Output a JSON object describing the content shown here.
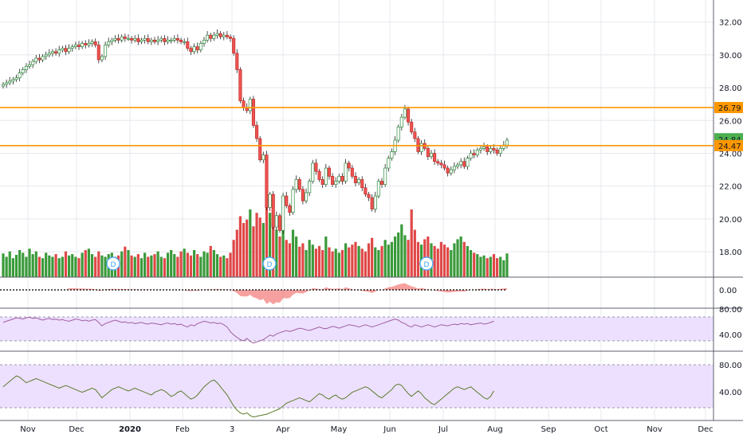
{
  "colors": {
    "up": "#26a69a",
    "up_candle": "#2e8b3e",
    "down": "#ef5350",
    "up_vol": "#3a9a3a",
    "down_vol": "#e04848",
    "level": "#ff9800",
    "current": "#4caf50",
    "osc_line": "#a060a0",
    "osc2_line": "#5a7a2a",
    "band_fill": "#ede0ff",
    "grid": "#e6e8ee",
    "axis": "#131722"
  },
  "price_axis_ticks": [
    "32.00",
    "30.00",
    "28.00",
    "26.00",
    "24.00",
    "22.00",
    "20.00",
    "18.00"
  ],
  "osc1_ticks": [
    "0.00"
  ],
  "osc2_ticks": [
    "80.00",
    "40.00"
  ],
  "osc3_ticks": [
    "80.00",
    "40.00"
  ],
  "time_axis_labels": [
    {
      "text": "Nov",
      "bold": false
    },
    {
      "text": "Dec",
      "bold": false
    },
    {
      "text": "2020",
      "bold": true
    },
    {
      "text": "Feb",
      "bold": false
    },
    {
      "text": "3",
      "bold": false
    },
    {
      "text": "Apr",
      "bold": false
    },
    {
      "text": "May",
      "bold": false
    },
    {
      "text": "Jun",
      "bold": false
    },
    {
      "text": "Jul",
      "bold": false
    },
    {
      "text": "Aug",
      "bold": false
    },
    {
      "text": "Sep",
      "bold": false
    },
    {
      "text": "Oct",
      "bold": false
    },
    {
      "text": "Nov",
      "bold": false
    },
    {
      "text": "Dec",
      "bold": false
    }
  ],
  "levels": [
    {
      "label": "26.79",
      "value": 26.79
    },
    {
      "label": "24.47",
      "value": 24.47
    }
  ],
  "current_price": {
    "label": "24.84",
    "value": 24.84
  },
  "dividend_marker_text": "D",
  "chart_data": {
    "type": "candlestick",
    "y_range": [
      16.0,
      33.0
    ],
    "closes": [
      28.2,
      28.3,
      28.4,
      28.5,
      28.6,
      28.9,
      29.1,
      29.3,
      29.4,
      29.6,
      29.8,
      29.7,
      29.9,
      30.0,
      30.1,
      30.2,
      30.1,
      30.3,
      30.4,
      30.2,
      30.4,
      30.5,
      30.6,
      30.5,
      30.7,
      30.6,
      30.7,
      30.8,
      30.6,
      29.7,
      29.9,
      30.6,
      30.8,
      30.9,
      31.0,
      30.9,
      31.1,
      31.0,
      31.0,
      30.9,
      31.0,
      30.8,
      30.9,
      31.0,
      30.8,
      30.9,
      30.8,
      30.9,
      31.0,
      30.8,
      30.9,
      30.9,
      31.0,
      30.9,
      30.8,
      30.8,
      30.4,
      30.2,
      30.5,
      30.3,
      30.7,
      30.9,
      31.2,
      31.0,
      31.2,
      31.3,
      31.1,
      31.2,
      31.1,
      31.0,
      30.1,
      29.1,
      27.2,
      26.8,
      26.6,
      27.3,
      25.7,
      24.9,
      23.6,
      23.9,
      20.7,
      21.5,
      19.5,
      20.2,
      19.3,
      21.4,
      20.8,
      20.4,
      21.8,
      22.4,
      21.8,
      21.1,
      21.6,
      22.3,
      23.4,
      22.9,
      22.4,
      22.1,
      23.1,
      22.6,
      22.1,
      22.3,
      22.6,
      22.3,
      23.4,
      23.1,
      22.6,
      22.2,
      22.4,
      21.9,
      21.5,
      21.3,
      20.6,
      21.4,
      22.3,
      22.1,
      23.1,
      23.7,
      24.1,
      24.8,
      25.6,
      26.2,
      26.7,
      25.9,
      25.3,
      24.9,
      24.1,
      24.6,
      24.3,
      23.8,
      24.0,
      23.5,
      23.4,
      23.3,
      23.1,
      22.8,
      23.0,
      23.2,
      23.3,
      23.5,
      23.2,
      23.7,
      24.0,
      23.9,
      24.2,
      24.3,
      24.4,
      24.1,
      24.3,
      24.2,
      24.0,
      24.3,
      24.5,
      24.8
    ],
    "volumes": [
      0.35,
      0.3,
      0.38,
      0.28,
      0.33,
      0.4,
      0.36,
      0.3,
      0.42,
      0.34,
      0.38,
      0.3,
      0.28,
      0.36,
      0.32,
      0.3,
      0.34,
      0.28,
      0.3,
      0.38,
      0.32,
      0.34,
      0.3,
      0.28,
      0.36,
      0.4,
      0.42,
      0.34,
      0.3,
      0.38,
      0.32,
      0.3,
      0.34,
      0.36,
      0.3,
      0.32,
      0.38,
      0.45,
      0.4,
      0.32,
      0.3,
      0.34,
      0.28,
      0.36,
      0.3,
      0.32,
      0.34,
      0.38,
      0.3,
      0.28,
      0.36,
      0.4,
      0.34,
      0.3,
      0.38,
      0.42,
      0.36,
      0.32,
      0.4,
      0.34,
      0.3,
      0.38,
      0.36,
      0.46,
      0.4,
      0.34,
      0.3,
      0.32,
      0.28,
      0.36,
      0.55,
      0.7,
      0.9,
      0.8,
      0.85,
      1.0,
      0.75,
      0.95,
      0.88,
      0.8,
      1.4,
      0.95,
      0.85,
      0.7,
      0.6,
      0.75,
      0.55,
      0.5,
      0.7,
      0.6,
      0.45,
      0.5,
      0.4,
      0.55,
      0.48,
      0.42,
      0.46,
      0.4,
      0.6,
      0.44,
      0.38,
      0.42,
      0.36,
      0.4,
      0.5,
      0.44,
      0.48,
      0.52,
      0.46,
      0.42,
      0.38,
      0.5,
      0.58,
      0.44,
      0.4,
      0.46,
      0.55,
      0.48,
      0.52,
      0.6,
      0.66,
      0.78,
      0.62,
      0.55,
      1.0,
      0.7,
      0.52,
      0.48,
      0.56,
      0.6,
      0.5,
      0.46,
      0.42,
      0.52,
      0.48,
      0.44,
      0.4,
      0.5,
      0.56,
      0.6,
      0.52,
      0.46,
      0.4,
      0.36,
      0.34,
      0.3,
      0.32,
      0.28,
      0.3,
      0.34,
      0.28,
      0.3,
      0.25,
      0.35
    ],
    "rsi1": [
      66,
      68,
      70,
      72,
      74,
      73,
      72,
      74,
      75,
      73,
      74,
      72,
      70,
      72,
      73,
      71,
      72,
      70,
      71,
      69,
      68,
      70,
      72,
      71,
      69,
      70,
      68,
      70,
      71,
      66,
      60,
      64,
      66,
      68,
      70,
      68,
      66,
      67,
      65,
      66,
      64,
      65,
      66,
      64,
      63,
      65,
      64,
      63,
      62,
      64,
      65,
      63,
      64,
      62,
      63,
      60,
      58,
      62,
      60,
      64,
      66,
      68,
      67,
      65,
      66,
      64,
      65,
      62,
      58,
      50,
      44,
      40,
      36,
      34,
      38,
      33,
      30,
      32,
      34,
      36,
      40,
      44,
      42,
      46,
      48,
      50,
      52,
      50,
      52,
      54,
      56,
      55,
      53,
      52,
      54,
      56,
      58,
      56,
      55,
      57,
      59,
      58,
      56,
      58,
      60,
      62,
      61,
      60,
      58,
      60,
      62,
      60,
      58,
      60,
      62,
      64,
      66,
      68,
      70,
      72,
      70,
      66,
      64,
      60,
      58,
      62,
      60,
      58,
      60,
      62,
      60,
      58,
      60,
      62,
      61,
      60,
      62,
      63,
      62,
      64,
      63,
      64,
      62,
      63,
      64,
      65,
      63,
      64,
      66,
      68
    ],
    "rsi2": [
      68,
      72,
      76,
      80,
      84,
      82,
      78,
      74,
      76,
      78,
      80,
      78,
      76,
      74,
      72,
      70,
      68,
      66,
      68,
      70,
      68,
      66,
      64,
      62,
      60,
      62,
      64,
      66,
      64,
      58,
      52,
      56,
      60,
      64,
      66,
      68,
      66,
      64,
      62,
      64,
      66,
      64,
      62,
      60,
      58,
      56,
      60,
      62,
      64,
      62,
      58,
      54,
      56,
      60,
      62,
      58,
      54,
      50,
      52,
      56,
      62,
      68,
      72,
      76,
      78,
      74,
      68,
      62,
      56,
      48,
      40,
      34,
      30,
      28,
      30,
      26,
      24,
      25,
      26,
      27,
      28,
      30,
      32,
      34,
      36,
      40,
      44,
      46,
      48,
      50,
      52,
      50,
      48,
      46,
      50,
      54,
      58,
      56,
      52,
      50,
      54,
      56,
      52,
      50,
      52,
      56,
      60,
      62,
      64,
      66,
      68,
      66,
      62,
      58,
      54,
      52,
      56,
      60,
      64,
      70,
      72,
      70,
      64,
      58,
      54,
      58,
      62,
      58,
      52,
      48,
      44,
      42,
      46,
      50,
      54,
      58,
      62,
      66,
      68,
      66,
      64,
      66,
      68,
      64,
      60,
      56,
      52,
      50,
      54,
      62
    ]
  }
}
